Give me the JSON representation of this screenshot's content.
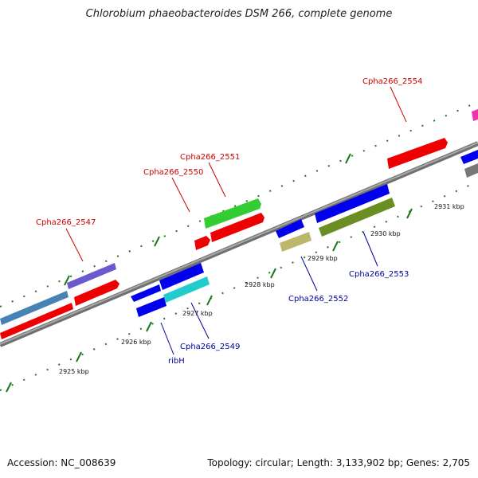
{
  "title": "Chlorobium phaeobacteroides DSM 266, complete genome",
  "footer": {
    "accession": "Accession: NC_008639",
    "topology": "Topology: circular; Length: 3,133,902 bp; Genes: 2,705"
  },
  "colors": {
    "forward_label": "#cc0000",
    "reverse_label": "#000099",
    "backbone": "#8a8a8a",
    "tick": "#1a7a1a"
  },
  "ticks": [
    "2925 kbp",
    "2926 kbp",
    "2927 kbp",
    "2928 kbp",
    "2929 kbp",
    "2930 kbp",
    "2931 kbp"
  ],
  "gene_labels": [
    {
      "text": "Cpha266_2547",
      "strand": "forward"
    },
    {
      "text": "Cpha266_2550",
      "strand": "forward"
    },
    {
      "text": "Cpha266_2551",
      "strand": "forward"
    },
    {
      "text": "Cpha266_2554",
      "strand": "forward"
    },
    {
      "text": "ribH",
      "strand": "reverse"
    },
    {
      "text": "Cpha266_2549",
      "strand": "reverse"
    },
    {
      "text": "Cpha266_2552",
      "strand": "reverse"
    },
    {
      "text": "Cpha266_2553",
      "strand": "reverse"
    }
  ]
}
